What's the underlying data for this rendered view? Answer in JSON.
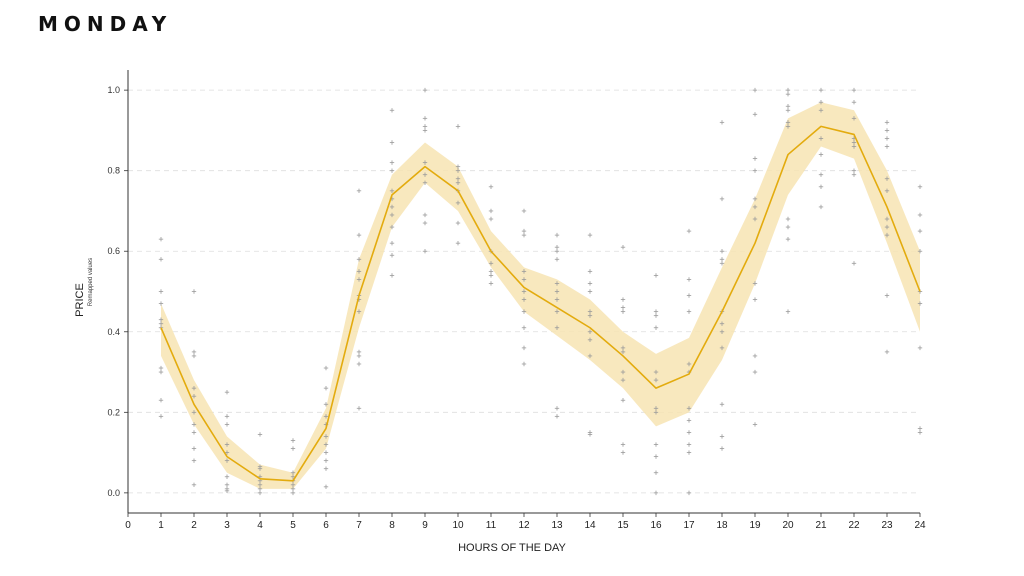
{
  "page": {
    "title": "MONDAY"
  },
  "chart_data": {
    "type": "line",
    "title": "MONDAY",
    "xlabel": "HOURS OF THE DAY",
    "ylabel": "PRICE",
    "ylabel_sub": "Remapped values",
    "xlim": [
      0,
      24
    ],
    "ylim": [
      -0.05,
      1.05
    ],
    "x_ticks": [
      "0",
      "1",
      "2",
      "3",
      "4",
      "5",
      "6",
      "7",
      "8",
      "9",
      "10",
      "11",
      "12",
      "13",
      "14",
      "15",
      "16",
      "17",
      "18",
      "19",
      "20",
      "21",
      "22",
      "23",
      "24"
    ],
    "y_ticks": [
      "0.0",
      "0.2",
      "0.4",
      "0.6",
      "0.8",
      "1.0"
    ],
    "y_tick_values": [
      0.0,
      0.2,
      0.4,
      0.6,
      0.8,
      1.0
    ],
    "grid": "horizontal-dashed",
    "colors": {
      "line": "#e3ab0e",
      "band": "#f7e4b3",
      "points": "#9a9a9a",
      "grid": "#dddddd"
    },
    "series": [
      {
        "x": [
          1,
          2,
          3,
          4,
          5,
          6,
          7,
          8,
          9,
          10,
          11,
          12,
          13,
          14,
          15,
          16,
          17,
          18,
          19,
          20,
          21,
          22,
          23,
          24
        ],
        "values": [
          0.41,
          0.22,
          0.09,
          0.035,
          0.03,
          0.16,
          0.49,
          0.74,
          0.81,
          0.75,
          0.6,
          0.51,
          0.46,
          0.41,
          0.34,
          0.26,
          0.295,
          0.45,
          0.62,
          0.84,
          0.91,
          0.89,
          0.71,
          0.5
        ],
        "ci_low": [
          0.34,
          0.17,
          0.05,
          0.01,
          0.01,
          0.11,
          0.41,
          0.66,
          0.77,
          0.7,
          0.56,
          0.45,
          0.39,
          0.33,
          0.26,
          0.165,
          0.2,
          0.33,
          0.52,
          0.74,
          0.86,
          0.83,
          0.62,
          0.4
        ],
        "ci_high": [
          0.47,
          0.28,
          0.14,
          0.07,
          0.05,
          0.21,
          0.58,
          0.79,
          0.87,
          0.81,
          0.65,
          0.56,
          0.53,
          0.48,
          0.4,
          0.345,
          0.385,
          0.56,
          0.73,
          0.93,
          0.97,
          0.95,
          0.8,
          0.6
        ]
      }
    ],
    "scatter": [
      {
        "x": 1,
        "y": [
          0.63,
          0.58,
          0.5,
          0.47,
          0.43,
          0.42,
          0.41,
          0.31,
          0.3,
          0.23,
          0.19
        ]
      },
      {
        "x": 2,
        "y": [
          0.5,
          0.35,
          0.34,
          0.26,
          0.24,
          0.2,
          0.17,
          0.15,
          0.11,
          0.08,
          0.02
        ]
      },
      {
        "x": 3,
        "y": [
          0.25,
          0.19,
          0.17,
          0.12,
          0.1,
          0.08,
          0.04,
          0.02,
          0.01,
          0.005
        ]
      },
      {
        "x": 4,
        "y": [
          0.145,
          0.065,
          0.06,
          0.04,
          0.03,
          0.02,
          0.01,
          0.0
        ]
      },
      {
        "x": 5,
        "y": [
          0.13,
          0.11,
          0.05,
          0.04,
          0.03,
          0.02,
          0.01,
          0.0
        ]
      },
      {
        "x": 6,
        "y": [
          0.31,
          0.26,
          0.22,
          0.19,
          0.17,
          0.14,
          0.12,
          0.1,
          0.08,
          0.06,
          0.015
        ]
      },
      {
        "x": 7,
        "y": [
          0.75,
          0.64,
          0.58,
          0.55,
          0.53,
          0.49,
          0.48,
          0.45,
          0.35,
          0.34,
          0.32,
          0.21
        ]
      },
      {
        "x": 8,
        "y": [
          0.95,
          0.87,
          0.82,
          0.8,
          0.75,
          0.73,
          0.71,
          0.69,
          0.66,
          0.62,
          0.59,
          0.54
        ]
      },
      {
        "x": 9,
        "y": [
          1.0,
          0.93,
          0.91,
          0.9,
          0.82,
          0.79,
          0.77,
          0.69,
          0.67,
          0.6
        ]
      },
      {
        "x": 10,
        "y": [
          0.91,
          0.81,
          0.8,
          0.78,
          0.77,
          0.75,
          0.72,
          0.67,
          0.62
        ]
      },
      {
        "x": 11,
        "y": [
          0.76,
          0.7,
          0.68,
          0.6,
          0.57,
          0.55,
          0.54,
          0.52
        ]
      },
      {
        "x": 12,
        "y": [
          0.7,
          0.65,
          0.64,
          0.55,
          0.53,
          0.5,
          0.48,
          0.45,
          0.41,
          0.36,
          0.32
        ]
      },
      {
        "x": 13,
        "y": [
          0.64,
          0.61,
          0.6,
          0.58,
          0.52,
          0.5,
          0.48,
          0.45,
          0.41,
          0.21,
          0.19
        ]
      },
      {
        "x": 14,
        "y": [
          0.64,
          0.55,
          0.52,
          0.5,
          0.45,
          0.44,
          0.4,
          0.38,
          0.34,
          0.15,
          0.145
        ]
      },
      {
        "x": 15,
        "y": [
          0.61,
          0.48,
          0.46,
          0.45,
          0.36,
          0.35,
          0.3,
          0.28,
          0.23,
          0.12,
          0.1
        ]
      },
      {
        "x": 16,
        "y": [
          0.54,
          0.45,
          0.44,
          0.41,
          0.3,
          0.28,
          0.21,
          0.2,
          0.12,
          0.09,
          0.05,
          0.0
        ]
      },
      {
        "x": 17,
        "y": [
          0.65,
          0.53,
          0.49,
          0.45,
          0.32,
          0.3,
          0.21,
          0.18,
          0.15,
          0.12,
          0.1,
          0.0
        ]
      },
      {
        "x": 18,
        "y": [
          0.92,
          0.73,
          0.6,
          0.58,
          0.57,
          0.45,
          0.42,
          0.4,
          0.36,
          0.22,
          0.14,
          0.11
        ]
      },
      {
        "x": 19,
        "y": [
          1.0,
          0.94,
          0.83,
          0.8,
          0.73,
          0.71,
          0.68,
          0.52,
          0.48,
          0.34,
          0.3,
          0.17
        ]
      },
      {
        "x": 20,
        "y": [
          1.0,
          0.99,
          0.96,
          0.95,
          0.92,
          0.91,
          0.68,
          0.66,
          0.63,
          0.45
        ]
      },
      {
        "x": 21,
        "y": [
          1.0,
          0.97,
          0.95,
          0.88,
          0.84,
          0.79,
          0.76,
          0.71
        ]
      },
      {
        "x": 22,
        "y": [
          1.0,
          0.97,
          0.93,
          0.88,
          0.87,
          0.86,
          0.8,
          0.79,
          0.57
        ]
      },
      {
        "x": 23,
        "y": [
          0.92,
          0.9,
          0.88,
          0.86,
          0.78,
          0.75,
          0.68,
          0.66,
          0.64,
          0.49,
          0.35
        ]
      },
      {
        "x": 24,
        "y": [
          0.76,
          0.69,
          0.65,
          0.6,
          0.5,
          0.47,
          0.36,
          0.16,
          0.15
        ]
      }
    ]
  }
}
